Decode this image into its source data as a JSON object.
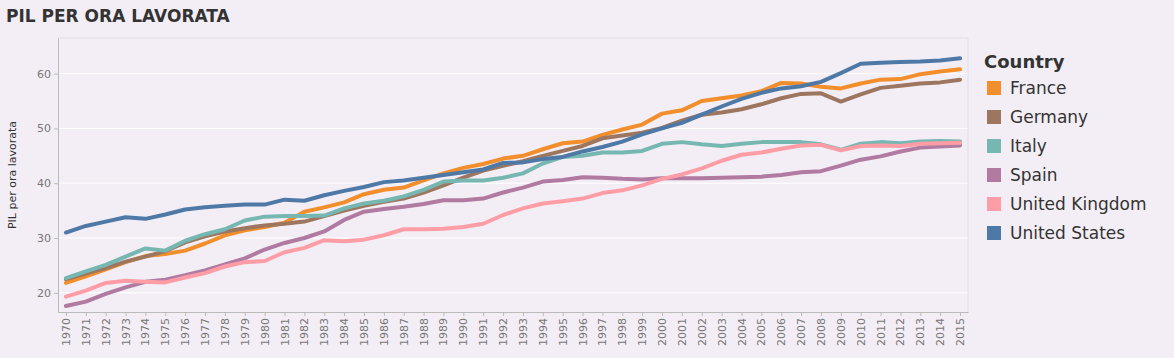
{
  "chart_data": {
    "type": "line",
    "title": "PIL PER ORA LAVORATA",
    "y_label": "PIL per ora lavorata",
    "legend_title": "Country",
    "legend": "right",
    "grid": true,
    "x": [
      1970,
      1971,
      1972,
      1973,
      1974,
      1975,
      1976,
      1977,
      1978,
      1979,
      1980,
      1981,
      1982,
      1983,
      1984,
      1985,
      1986,
      1987,
      1988,
      1989,
      1990,
      1991,
      1992,
      1993,
      1994,
      1995,
      1996,
      1997,
      1998,
      1999,
      2000,
      2001,
      2002,
      2003,
      2004,
      2005,
      2006,
      2007,
      2008,
      2009,
      2010,
      2011,
      2012,
      2013,
      2014,
      2015
    ],
    "xlim": [
      1969.6,
      2015.4
    ],
    "xticks": [
      1970,
      1971,
      1972,
      1973,
      1974,
      1975,
      1976,
      1977,
      1978,
      1979,
      1980,
      1981,
      1982,
      1983,
      1984,
      1985,
      1986,
      1987,
      1988,
      1989,
      1990,
      1991,
      1992,
      1993,
      1994,
      1995,
      1996,
      1997,
      1998,
      1999,
      2000,
      2001,
      2002,
      2003,
      2004,
      2005,
      2006,
      2007,
      2008,
      2009,
      2010,
      2011,
      2012,
      2013,
      2014,
      2015
    ],
    "ylim": [
      16.5,
      66.5
    ],
    "yticks": [
      20,
      30,
      40,
      50,
      60
    ],
    "series": [
      {
        "name": "France",
        "color": "#f28e2b",
        "values": [
          21.8,
          23,
          24.3,
          25.6,
          26.7,
          27.1,
          27.7,
          29,
          30.5,
          31.4,
          32,
          32.8,
          34.8,
          35.6,
          36.5,
          38,
          38.8,
          39.2,
          40.5,
          41.8,
          42.8,
          43.5,
          44.5,
          45,
          46.2,
          47.3,
          47.6,
          48.8,
          49.8,
          50.7,
          52.7,
          53.3,
          55,
          55.5,
          56,
          56.8,
          58.3,
          58.2,
          57.6,
          57.3,
          58.2,
          58.9,
          59,
          59.9,
          60.4,
          60.8
        ]
      },
      {
        "name": "Germany",
        "color": "#9d7660",
        "values": [
          22.5,
          23.5,
          24.5,
          25.7,
          26.6,
          27.6,
          29.2,
          30.3,
          31.2,
          31.8,
          32.3,
          32.6,
          33,
          34,
          35,
          35.9,
          36.6,
          37.2,
          38.3,
          39.6,
          41,
          42.3,
          43.2,
          44,
          45,
          45.9,
          46.8,
          48.2,
          48.7,
          49.2,
          50.1,
          51.4,
          52.5,
          52.9,
          53.5,
          54.4,
          55.5,
          56.3,
          56.4,
          54.9,
          56.2,
          57.4,
          57.8,
          58.2,
          58.4,
          58.9
        ]
      },
      {
        "name": "Italy",
        "color": "#76b7b2",
        "values": [
          22.7,
          23.9,
          25.1,
          26.6,
          28.1,
          27.7,
          29.5,
          30.7,
          31.6,
          33.2,
          33.9,
          34,
          34,
          34.1,
          35.4,
          36.3,
          36.8,
          37.6,
          38.8,
          40.3,
          40.5,
          40.5,
          41,
          41.8,
          43.6,
          44.8,
          45,
          45.6,
          45.6,
          45.9,
          47.2,
          47.5,
          47.1,
          46.8,
          47.2,
          47.5,
          47.5,
          47.5,
          47.1,
          46.1,
          47.2,
          47.5,
          47.3,
          47.6,
          47.7,
          47.6
        ]
      },
      {
        "name": "Spain",
        "color": "#b07aa1",
        "values": [
          17.6,
          18.4,
          19.8,
          21,
          22,
          22.4,
          23.2,
          24.1,
          25.2,
          26.3,
          27.9,
          29.1,
          30,
          31.2,
          33.3,
          34.8,
          35.3,
          35.7,
          36.2,
          36.9,
          36.9,
          37.2,
          38.3,
          39.2,
          40.3,
          40.6,
          41.1,
          41,
          40.8,
          40.7,
          40.9,
          40.9,
          40.9,
          41,
          41.1,
          41.2,
          41.5,
          42,
          42.2,
          43.2,
          44.3,
          44.9,
          45.8,
          46.5,
          46.7,
          46.9
        ]
      },
      {
        "name": "United Kingdom",
        "color": "#ff9da7",
        "values": [
          19.3,
          20.4,
          21.8,
          22.2,
          22,
          21.9,
          22.8,
          23.6,
          24.8,
          25.6,
          25.8,
          27.4,
          28.2,
          29.6,
          29.4,
          29.7,
          30.5,
          31.6,
          31.6,
          31.7,
          32,
          32.6,
          34.2,
          35.4,
          36.3,
          36.7,
          37.2,
          38.2,
          38.7,
          39.6,
          40.8,
          41.6,
          42.7,
          44.1,
          45.2,
          45.6,
          46.3,
          46.9,
          47,
          46,
          46.8,
          46.9,
          46.8,
          47.2,
          47.3,
          47.4
        ]
      },
      {
        "name": "United States",
        "color": "#4e79a7",
        "values": [
          31,
          32.2,
          33,
          33.8,
          33.5,
          34.3,
          35.2,
          35.6,
          35.9,
          36.1,
          36.1,
          37,
          36.8,
          37.8,
          38.6,
          39.3,
          40.2,
          40.5,
          41,
          41.5,
          42,
          42.5,
          43.7,
          43.8,
          44.4,
          44.8,
          45.8,
          46.6,
          47.6,
          48.9,
          50,
          51,
          52.5,
          54,
          55.4,
          56.5,
          57.3,
          57.7,
          58.5,
          60.1,
          61.8,
          62,
          62.1,
          62.2,
          62.4,
          62.8
        ]
      }
    ]
  }
}
